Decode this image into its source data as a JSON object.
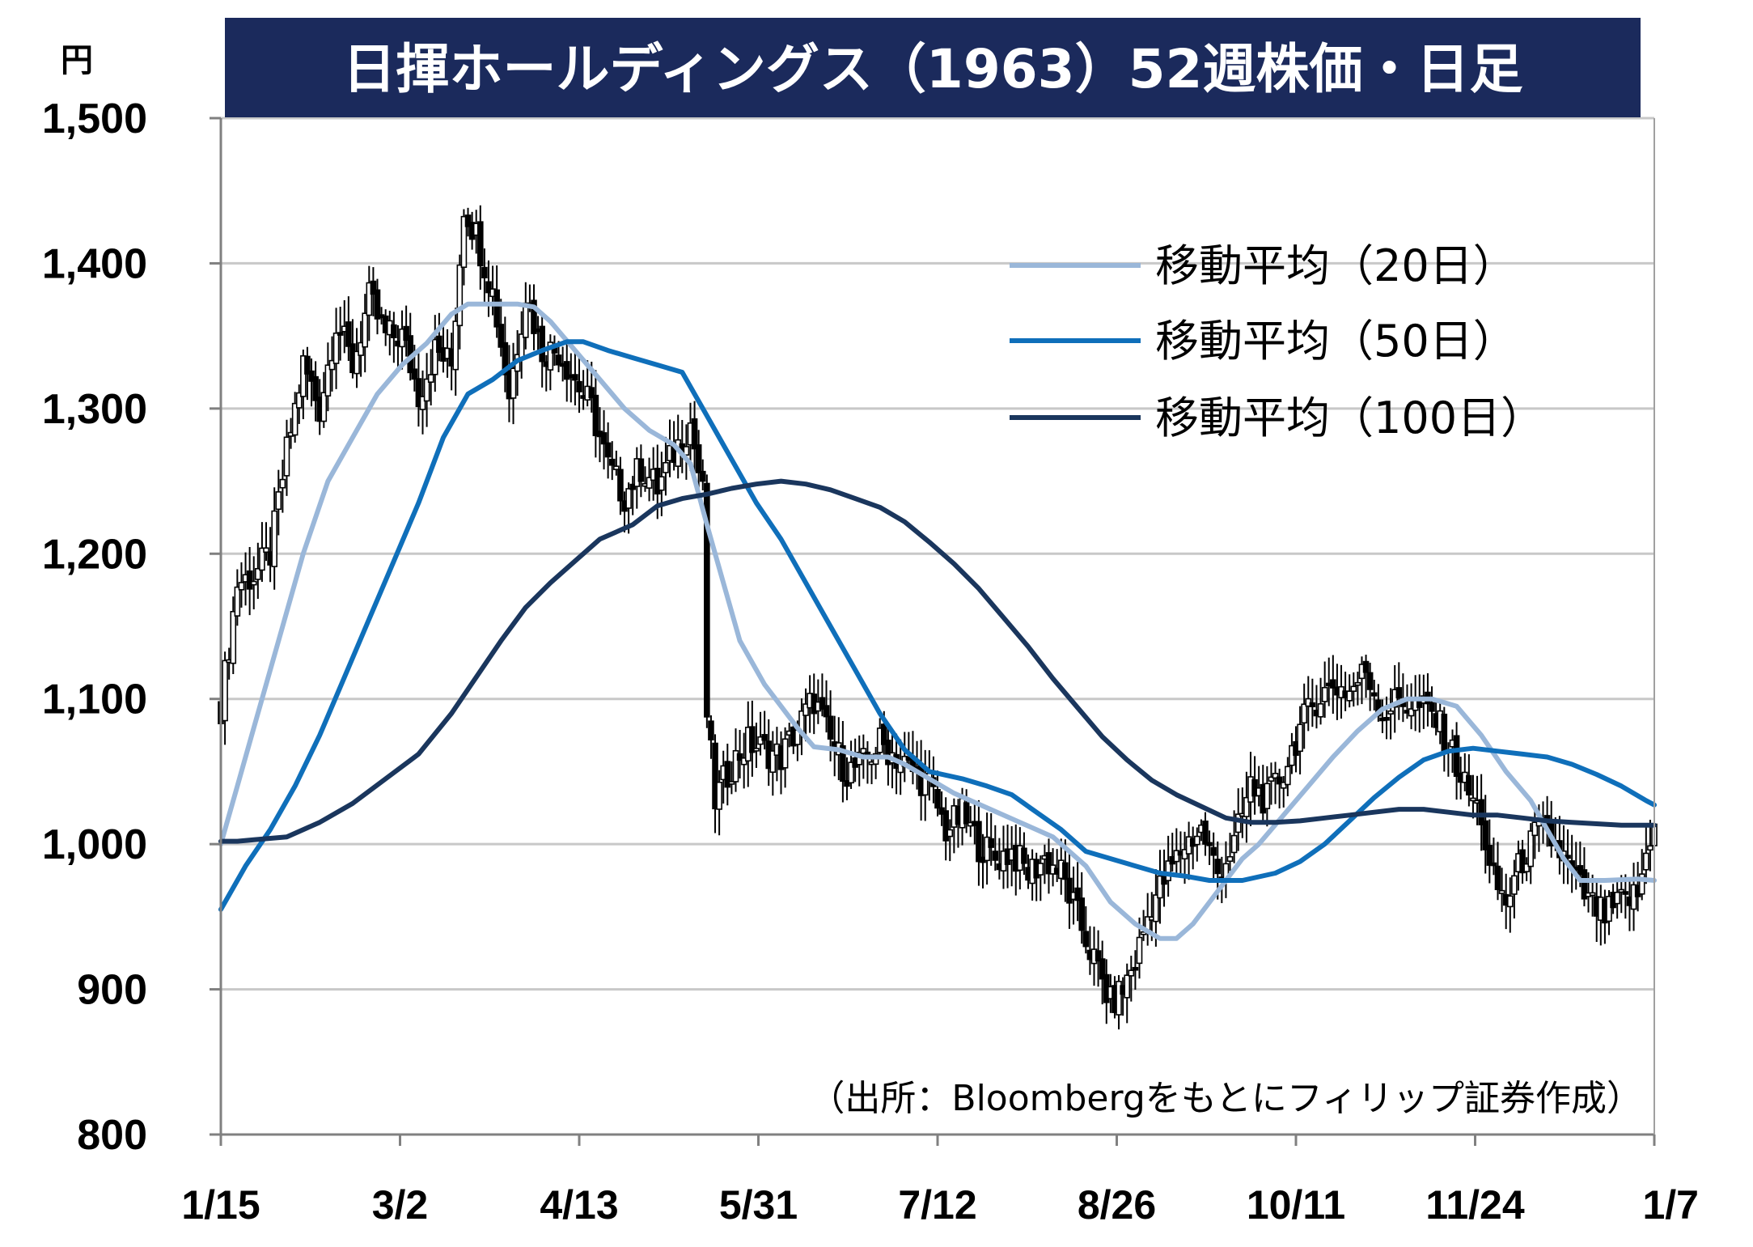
{
  "chart_data": {
    "type": "candlestick",
    "title": "日揮ホールディングス（1963）52週株価・日足",
    "unit_label": "円",
    "source_note": "（出所：Bloombergをもとにフィリップ証券作成）",
    "x_tick_labels": [
      "1/15",
      "3/2",
      "4/13",
      "5/31",
      "7/12",
      "8/26",
      "10/11",
      "11/24",
      "1/7"
    ],
    "y_ticks": [
      800,
      900,
      1000,
      1100,
      1200,
      1300,
      1400,
      1500
    ],
    "y_tick_labels": [
      "800",
      "900",
      "1,000",
      "1,100",
      "1,200",
      "1,300",
      "1,400",
      "1,500"
    ],
    "ylim": [
      800,
      1500
    ],
    "grid": true,
    "legend_position": "top-right",
    "close_anchors": [
      [
        0,
        1095
      ],
      [
        4,
        1180
      ],
      [
        8,
        1185
      ],
      [
        12,
        1200
      ],
      [
        16,
        1270
      ],
      [
        20,
        1330
      ],
      [
        24,
        1300
      ],
      [
        28,
        1360
      ],
      [
        32,
        1330
      ],
      [
        36,
        1375
      ],
      [
        40,
        1350
      ],
      [
        44,
        1350
      ],
      [
        48,
        1310
      ],
      [
        52,
        1340
      ],
      [
        56,
        1330
      ],
      [
        59,
        1440
      ],
      [
        62,
        1420
      ],
      [
        66,
        1380
      ],
      [
        70,
        1310
      ],
      [
        74,
        1380
      ],
      [
        78,
        1340
      ],
      [
        82,
        1340
      ],
      [
        86,
        1320
      ],
      [
        90,
        1300
      ],
      [
        94,
        1260
      ],
      [
        98,
        1240
      ],
      [
        102,
        1260
      ],
      [
        106,
        1245
      ],
      [
        110,
        1270
      ],
      [
        114,
        1290
      ],
      [
        117,
        1240
      ],
      [
        118,
        1090
      ],
      [
        120,
        1030
      ],
      [
        124,
        1055
      ],
      [
        128,
        1070
      ],
      [
        132,
        1065
      ],
      [
        136,
        1060
      ],
      [
        140,
        1080
      ],
      [
        144,
        1100
      ],
      [
        148,
        1070
      ],
      [
        152,
        1050
      ],
      [
        156,
        1055
      ],
      [
        160,
        1070
      ],
      [
        164,
        1060
      ],
      [
        168,
        1050
      ],
      [
        172,
        1040
      ],
      [
        176,
        1010
      ],
      [
        180,
        1020
      ],
      [
        184,
        1000
      ],
      [
        188,
        990
      ],
      [
        192,
        995
      ],
      [
        196,
        980
      ],
      [
        200,
        990
      ],
      [
        204,
        980
      ],
      [
        208,
        950
      ],
      [
        212,
        920
      ],
      [
        216,
        890
      ],
      [
        219,
        900
      ],
      [
        222,
        920
      ],
      [
        226,
        960
      ],
      [
        230,
        980
      ],
      [
        234,
        1000
      ],
      [
        238,
        1010
      ],
      [
        242,
        980
      ],
      [
        246,
        1000
      ],
      [
        250,
        1040
      ],
      [
        254,
        1030
      ],
      [
        258,
        1050
      ],
      [
        262,
        1080
      ],
      [
        266,
        1100
      ],
      [
        270,
        1110
      ],
      [
        274,
        1105
      ],
      [
        278,
        1120
      ],
      [
        282,
        1090
      ],
      [
        286,
        1100
      ],
      [
        290,
        1095
      ],
      [
        294,
        1090
      ],
      [
        298,
        1070
      ],
      [
        302,
        1040
      ],
      [
        306,
        1020
      ],
      [
        308,
        980
      ],
      [
        312,
        960
      ],
      [
        316,
        990
      ],
      [
        320,
        1010
      ],
      [
        324,
        1000
      ],
      [
        328,
        980
      ],
      [
        332,
        960
      ],
      [
        336,
        950
      ],
      [
        340,
        960
      ],
      [
        344,
        965
      ],
      [
        348,
        1020
      ]
    ],
    "series": [
      {
        "name": "移動平均（20日）",
        "color": "#9ab7d9",
        "points": [
          [
            0,
            1000
          ],
          [
            4,
            1040
          ],
          [
            8,
            1080
          ],
          [
            14,
            1140
          ],
          [
            20,
            1200
          ],
          [
            26,
            1250
          ],
          [
            32,
            1280
          ],
          [
            38,
            1310
          ],
          [
            44,
            1330
          ],
          [
            50,
            1345
          ],
          [
            56,
            1365
          ],
          [
            60,
            1372
          ],
          [
            66,
            1372
          ],
          [
            72,
            1372
          ],
          [
            76,
            1370
          ],
          [
            80,
            1360
          ],
          [
            86,
            1340
          ],
          [
            92,
            1320
          ],
          [
            98,
            1300
          ],
          [
            104,
            1285
          ],
          [
            110,
            1275
          ],
          [
            114,
            1262
          ],
          [
            118,
            1220
          ],
          [
            122,
            1180
          ],
          [
            126,
            1140
          ],
          [
            132,
            1110
          ],
          [
            136,
            1095
          ],
          [
            140,
            1080
          ],
          [
            144,
            1067
          ],
          [
            150,
            1065
          ],
          [
            156,
            1060
          ],
          [
            162,
            1060
          ],
          [
            166,
            1055
          ],
          [
            172,
            1045
          ],
          [
            178,
            1035
          ],
          [
            186,
            1025
          ],
          [
            194,
            1015
          ],
          [
            202,
            1005
          ],
          [
            210,
            985
          ],
          [
            216,
            960
          ],
          [
            222,
            945
          ],
          [
            228,
            935
          ],
          [
            232,
            935
          ],
          [
            236,
            945
          ],
          [
            240,
            960
          ],
          [
            244,
            975
          ],
          [
            248,
            990
          ],
          [
            252,
            1000
          ],
          [
            258,
            1020
          ],
          [
            264,
            1040
          ],
          [
            270,
            1060
          ],
          [
            276,
            1078
          ],
          [
            282,
            1093
          ],
          [
            288,
            1100
          ],
          [
            294,
            1100
          ],
          [
            300,
            1095
          ],
          [
            306,
            1075
          ],
          [
            312,
            1050
          ],
          [
            318,
            1030
          ],
          [
            322,
            1010
          ],
          [
            326,
            990
          ],
          [
            330,
            975
          ],
          [
            336,
            975
          ],
          [
            344,
            976
          ],
          [
            348,
            975
          ]
        ]
      },
      {
        "name": "移動平均（50日）",
        "color": "#0f6fba",
        "points": [
          [
            0,
            955
          ],
          [
            6,
            985
          ],
          [
            12,
            1010
          ],
          [
            18,
            1040
          ],
          [
            24,
            1075
          ],
          [
            30,
            1115
          ],
          [
            36,
            1155
          ],
          [
            42,
            1195
          ],
          [
            48,
            1235
          ],
          [
            54,
            1280
          ],
          [
            60,
            1310
          ],
          [
            66,
            1320
          ],
          [
            72,
            1333
          ],
          [
            78,
            1340
          ],
          [
            84,
            1346
          ],
          [
            88,
            1346
          ],
          [
            94,
            1340
          ],
          [
            100,
            1335
          ],
          [
            106,
            1330
          ],
          [
            112,
            1325
          ],
          [
            118,
            1295
          ],
          [
            124,
            1265
          ],
          [
            130,
            1235
          ],
          [
            136,
            1210
          ],
          [
            142,
            1180
          ],
          [
            148,
            1150
          ],
          [
            154,
            1120
          ],
          [
            160,
            1090
          ],
          [
            166,
            1065
          ],
          [
            172,
            1050
          ],
          [
            180,
            1045
          ],
          [
            186,
            1040
          ],
          [
            192,
            1034
          ],
          [
            198,
            1022
          ],
          [
            204,
            1010
          ],
          [
            210,
            995
          ],
          [
            216,
            990
          ],
          [
            222,
            985
          ],
          [
            228,
            980
          ],
          [
            234,
            978
          ],
          [
            240,
            975
          ],
          [
            248,
            975
          ],
          [
            256,
            980
          ],
          [
            262,
            988
          ],
          [
            268,
            1000
          ],
          [
            274,
            1016
          ],
          [
            280,
            1032
          ],
          [
            286,
            1046
          ],
          [
            292,
            1058
          ],
          [
            298,
            1064
          ],
          [
            304,
            1066
          ],
          [
            310,
            1064
          ],
          [
            316,
            1062
          ],
          [
            322,
            1060
          ],
          [
            328,
            1055
          ],
          [
            334,
            1048
          ],
          [
            340,
            1040
          ],
          [
            346,
            1030
          ],
          [
            348,
            1027
          ]
        ]
      },
      {
        "name": "移動平均（100日）",
        "color": "#1a365d",
        "points": [
          [
            0,
            1002
          ],
          [
            4,
            1002
          ],
          [
            8,
            1003
          ],
          [
            16,
            1005
          ],
          [
            24,
            1015
          ],
          [
            32,
            1028
          ],
          [
            40,
            1045
          ],
          [
            48,
            1062
          ],
          [
            56,
            1090
          ],
          [
            62,
            1115
          ],
          [
            68,
            1140
          ],
          [
            74,
            1163
          ],
          [
            80,
            1180
          ],
          [
            86,
            1195
          ],
          [
            92,
            1210
          ],
          [
            100,
            1220
          ],
          [
            106,
            1233
          ],
          [
            112,
            1238
          ],
          [
            118,
            1241
          ],
          [
            124,
            1245
          ],
          [
            130,
            1248
          ],
          [
            136,
            1250
          ],
          [
            142,
            1248
          ],
          [
            148,
            1244
          ],
          [
            154,
            1238
          ],
          [
            160,
            1232
          ],
          [
            166,
            1222
          ],
          [
            172,
            1208
          ],
          [
            178,
            1193
          ],
          [
            184,
            1176
          ],
          [
            190,
            1156
          ],
          [
            196,
            1136
          ],
          [
            202,
            1114
          ],
          [
            208,
            1094
          ],
          [
            214,
            1074
          ],
          [
            220,
            1058
          ],
          [
            226,
            1044
          ],
          [
            232,
            1034
          ],
          [
            238,
            1026
          ],
          [
            244,
            1018
          ],
          [
            250,
            1015
          ],
          [
            256,
            1015
          ],
          [
            262,
            1016
          ],
          [
            268,
            1018
          ],
          [
            274,
            1020
          ],
          [
            280,
            1022
          ],
          [
            286,
            1024
          ],
          [
            292,
            1024
          ],
          [
            298,
            1022
          ],
          [
            304,
            1020
          ],
          [
            310,
            1020
          ],
          [
            316,
            1018
          ],
          [
            322,
            1016
          ],
          [
            328,
            1015
          ],
          [
            334,
            1014
          ],
          [
            340,
            1013
          ],
          [
            348,
            1013
          ]
        ]
      }
    ]
  }
}
